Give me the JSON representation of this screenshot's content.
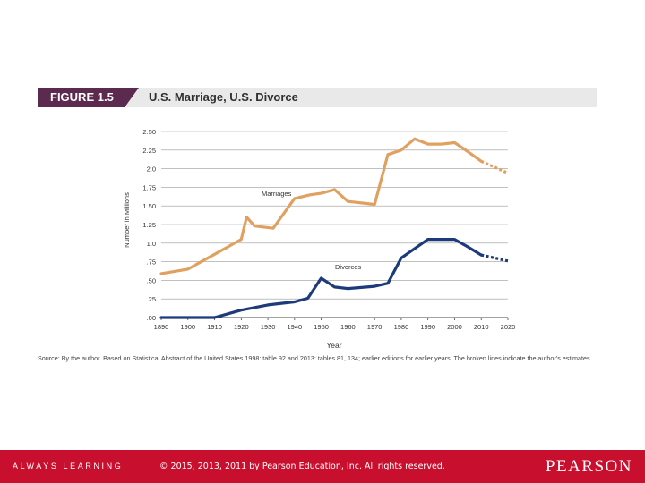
{
  "header": {
    "figure_label": "FIGURE 1.5",
    "title": "U.S. Marriage, U.S. Divorce"
  },
  "chart_data": {
    "type": "line",
    "title": "U.S. Marriage, U.S. Divorce",
    "xlabel": "Year",
    "ylabel": "Number in Millions",
    "xlim": [
      1890,
      2020
    ],
    "ylim": [
      0,
      2.5
    ],
    "x_ticks": [
      "1890",
      "1900",
      "1910",
      "1920",
      "1930",
      "1940",
      "1950",
      "1960",
      "1970",
      "1980",
      "1990",
      "2000",
      "2010",
      "2020"
    ],
    "y_ticks": [
      ".00",
      ".25",
      ".50",
      ".75",
      "1.0",
      "1.25",
      "1.50",
      "1.75",
      "2.0",
      "2.25",
      "2.50"
    ],
    "grid": true,
    "colors": {
      "marriages": "#e0a060",
      "divorces": "#1d3a7a"
    },
    "series": [
      {
        "name": "Marriages",
        "key": "marriages",
        "x": [
          1890,
          1900,
          1910,
          1915,
          1920,
          1922,
          1925,
          1932,
          1940,
          1946,
          1950,
          1955,
          1960,
          1970,
          1975,
          1980,
          1985,
          1990,
          1995,
          2000,
          2005,
          2010
        ],
        "values": [
          0.59,
          0.65,
          0.85,
          0.95,
          1.05,
          1.35,
          1.23,
          1.2,
          1.6,
          1.65,
          1.67,
          1.72,
          1.56,
          1.52,
          2.19,
          2.25,
          2.4,
          2.33,
          2.33,
          2.35,
          2.23,
          2.1
        ],
        "projected_x": [
          2010,
          2015,
          2020
        ],
        "projected_values": [
          2.1,
          2.02,
          1.94
        ]
      },
      {
        "name": "Divorces",
        "key": "divorces",
        "x": [
          1890,
          1900,
          1910,
          1920,
          1930,
          1940,
          1945,
          1950,
          1955,
          1960,
          1970,
          1975,
          1980,
          1990,
          2000,
          2005,
          2010
        ],
        "values": [
          0.0,
          0.0,
          0.0,
          0.1,
          0.17,
          0.21,
          0.26,
          0.53,
          0.41,
          0.39,
          0.42,
          0.46,
          0.8,
          1.05,
          1.05,
          0.95,
          0.84
        ],
        "projected_x": [
          2010,
          2015,
          2020
        ],
        "projected_values": [
          0.84,
          0.8,
          0.76
        ]
      }
    ]
  },
  "source_note": "Source: By the author. Based on Statistical Abstract of the United States 1998: table 92 and 2013: tables 81, 134; earlier editions for earlier years. The broken lines indicate the author's estimates.",
  "footer": {
    "tagline": "ALWAYS LEARNING",
    "copyright": "© 2015, 2013, 2011 by Pearson Education, Inc. All rights reserved.",
    "brand": "PEARSON"
  }
}
